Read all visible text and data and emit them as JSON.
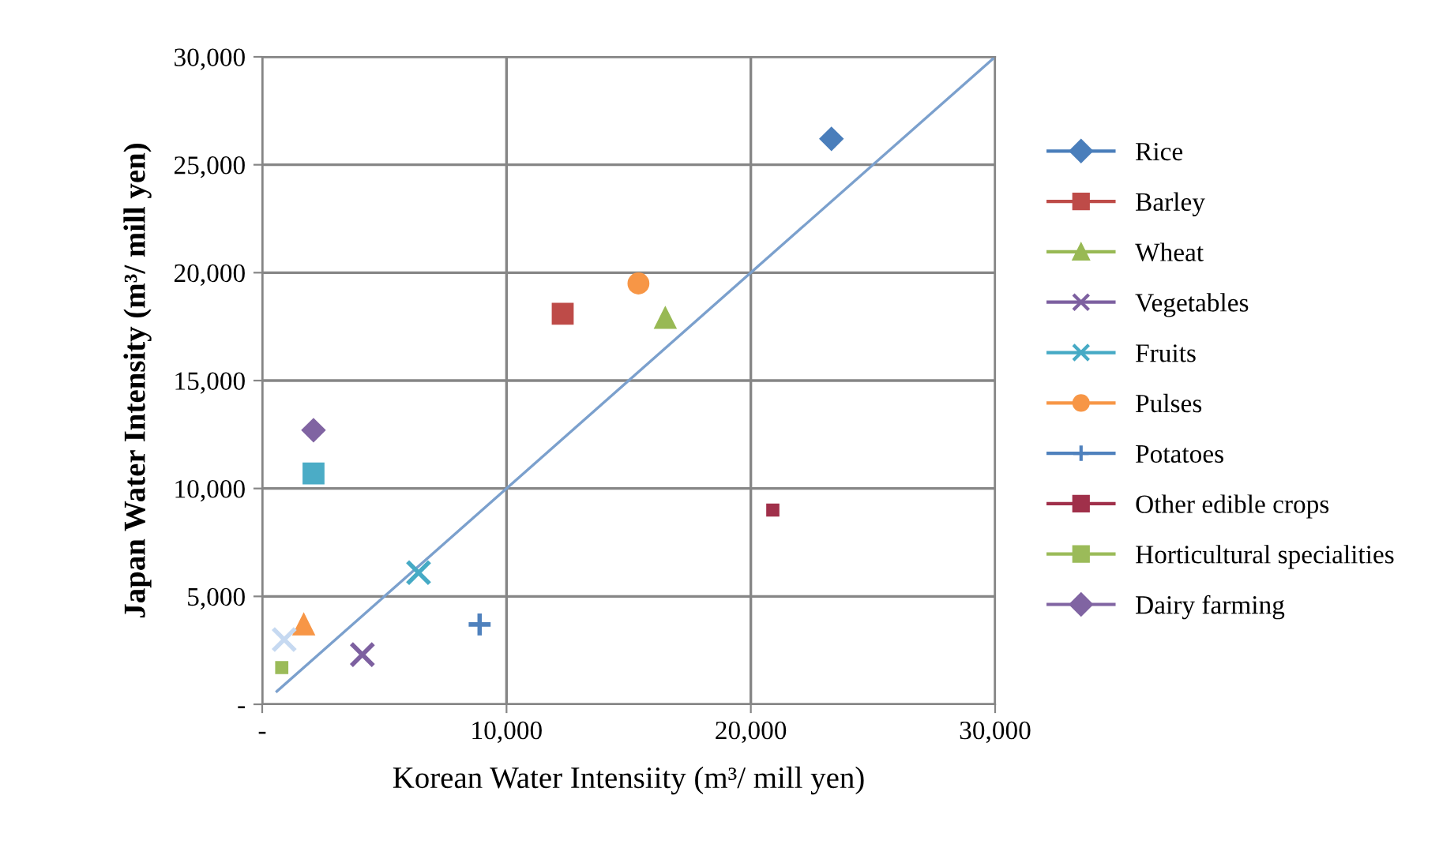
{
  "chart_data": {
    "type": "scatter",
    "xlabel": "Korean Water Intensiity (m³/ mill yen)",
    "ylabel": "Japan Water Intensity (m³/ mill yen)",
    "xlim": [
      0,
      30000
    ],
    "ylim": [
      0,
      30000
    ],
    "xticks": [
      {
        "value": 0,
        "label": "-"
      },
      {
        "value": 10000,
        "label": "10,000"
      },
      {
        "value": 20000,
        "label": "20,000"
      },
      {
        "value": 30000,
        "label": "30,000"
      }
    ],
    "yticks": [
      {
        "value": 0,
        "label": "-"
      },
      {
        "value": 5000,
        "label": "5,000"
      },
      {
        "value": 10000,
        "label": "10,000"
      },
      {
        "value": 15000,
        "label": "15,000"
      },
      {
        "value": 20000,
        "label": "20,000"
      },
      {
        "value": 25000,
        "label": "25,000"
      },
      {
        "value": 30000,
        "label": "30,000"
      }
    ],
    "grid": true,
    "legend": "right",
    "series": [
      {
        "name": "Rice",
        "color": "#4a7ebb",
        "marker": "diamond",
        "x": [
          23300
        ],
        "values": [
          26200
        ]
      },
      {
        "name": "Barley",
        "color": "#be4b48",
        "marker": "square",
        "x": [
          12300
        ],
        "values": [
          18100
        ]
      },
      {
        "name": "Wheat",
        "color": "#98b954",
        "marker": "triangle",
        "x": [
          16500
        ],
        "values": [
          17900
        ]
      },
      {
        "name": "Vegetables",
        "color": "#7d60a0",
        "marker": "cross",
        "x": [
          4100
        ],
        "values": [
          2300
        ]
      },
      {
        "name": "Fruits",
        "color": "#46aac5",
        "marker": "cross",
        "x": [
          6400
        ],
        "values": [
          6100
        ]
      },
      {
        "name": "Pulses",
        "color": "#f79646",
        "marker": "circle",
        "x": [
          15400
        ],
        "values": [
          19500
        ]
      },
      {
        "name": "Potatoes",
        "color": "#4f81bd",
        "marker": "plus",
        "x": [
          8900
        ],
        "values": [
          3700
        ]
      },
      {
        "name": "Other edible crops",
        "color": "#a0304a",
        "marker": "square",
        "x": [
          20900
        ],
        "values": [
          9000
        ]
      },
      {
        "name": "Horticultural specialities",
        "color": "#9bbb59",
        "marker": "square",
        "x": [
          800
        ],
        "values": [
          1700
        ]
      },
      {
        "name": "Dairy farming",
        "color": "#8064a2",
        "marker": "diamond",
        "x": [
          2100
        ],
        "values": [
          12700
        ]
      },
      {
        "color": "#4bacc6",
        "marker": "square",
        "x": [
          2100
        ],
        "values": [
          10700
        ]
      },
      {
        "color": "#f79646",
        "marker": "triangle",
        "x": [
          1700
        ],
        "values": [
          3700
        ]
      },
      {
        "color": "#c6d9f1",
        "marker": "cross",
        "x": [
          900
        ],
        "values": [
          3000
        ]
      },
      {
        "type": "line",
        "color": "#7ba0cd",
        "marker": "none",
        "x": [
          600,
          30000
        ],
        "values": [
          600,
          30000
        ]
      }
    ]
  }
}
